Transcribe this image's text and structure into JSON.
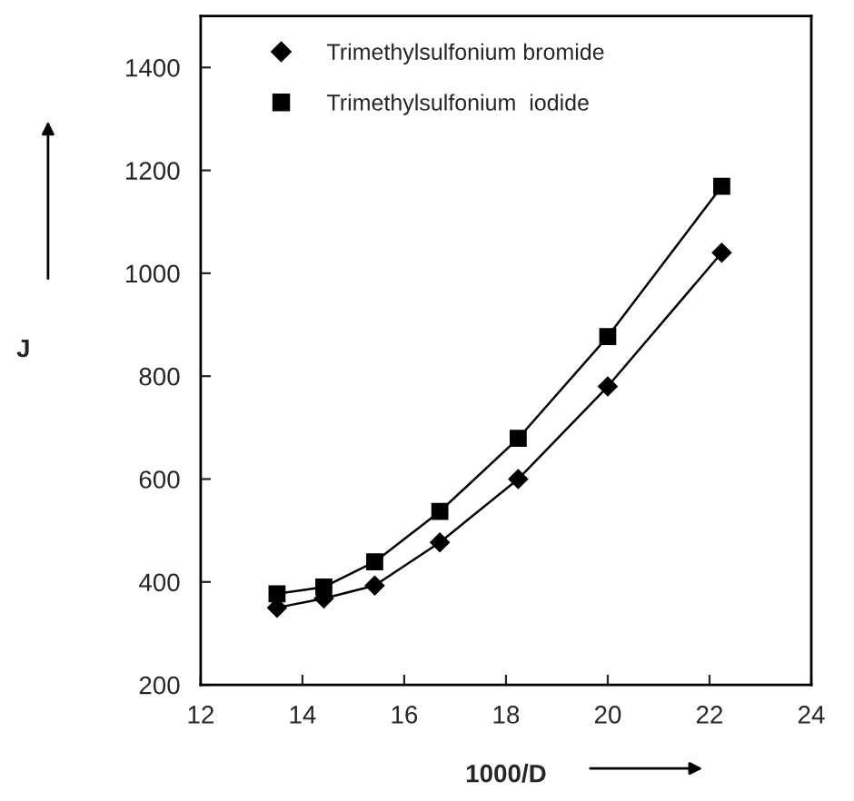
{
  "chart_data": {
    "type": "line",
    "xlabel": "1000/D",
    "ylabel": "J",
    "series": [
      {
        "name": "Trimethylsulfonium bromide",
        "color": "#000000",
        "marker": "diamond",
        "x": [
          13.5,
          14.42,
          15.42,
          16.7,
          18.24,
          20.0,
          22.24
        ],
        "values": [
          350,
          368,
          393,
          477,
          600,
          780,
          1040
        ]
      },
      {
        "name": "Trimethylsulfonium  iodide",
        "color": "#000000",
        "marker": "square",
        "x": [
          13.5,
          14.42,
          15.42,
          16.7,
          18.24,
          20.0,
          22.24
        ],
        "values": [
          377,
          390,
          439,
          537,
          679,
          877,
          1169
        ]
      }
    ],
    "xlim": [
      12,
      24
    ],
    "xticks": [
      12,
      14,
      16,
      18,
      20,
      22,
      24
    ],
    "ylim": [
      200,
      1500
    ],
    "yticks": [
      200,
      400,
      600,
      800,
      1000,
      1200,
      1400
    ],
    "legend": "top left",
    "grid": false,
    "line_style": "solid"
  }
}
